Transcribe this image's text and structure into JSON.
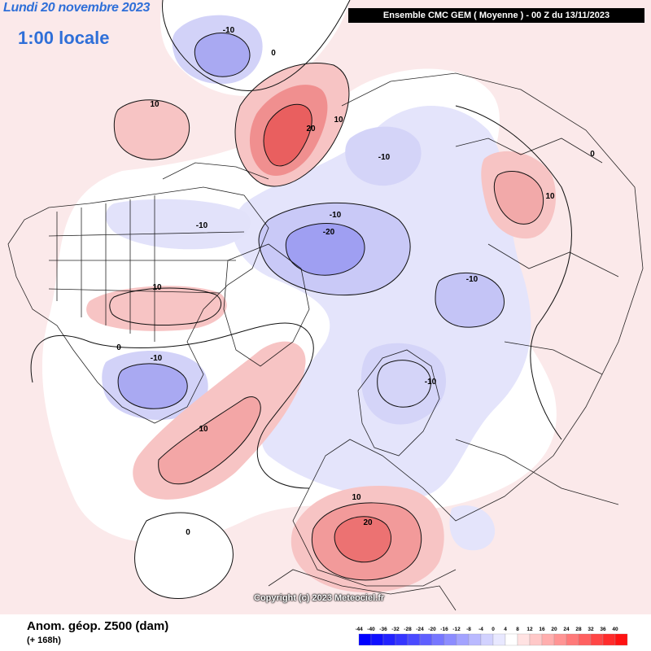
{
  "header": {
    "date_line": "Lundi 20 novembre 2023",
    "time_line": "1:00 locale",
    "model_line": "Ensemble CMC GEM  ( Moyenne )  -  00 Z du 13/11/2023"
  },
  "footer": {
    "variable": "Anom. géop. Z500 (dam)",
    "lead": "(+ 168h)",
    "copyright": "Copyright (c) 2023 Meteociel.fr"
  },
  "scale": {
    "ticks": [
      "-44",
      "-40",
      "-36",
      "-32",
      "-28",
      "-24",
      "-20",
      "-16",
      "-12",
      "-8",
      "-4",
      "0",
      "4",
      "8",
      "12",
      "16",
      "20",
      "24",
      "28",
      "32",
      "36",
      "40"
    ],
    "colors": [
      "#0000ff",
      "#1010ff",
      "#2222ff",
      "#3535ff",
      "#4a4aff",
      "#5f5fff",
      "#7676ff",
      "#8c8cff",
      "#a3a3ff",
      "#b9b9ff",
      "#d2d2ff",
      "#e8e8ff",
      "#ffffff",
      "#ffe2e2",
      "#ffc8c8",
      "#ffaeae",
      "#ff9494",
      "#ff7a7a",
      "#ff6060",
      "#ff4646",
      "#ff2c2c",
      "#ff1212"
    ]
  },
  "contour_labels": [
    {
      "text": "-10",
      "id": "alaska-low"
    },
    {
      "text": "0",
      "id": "bering-zero"
    },
    {
      "text": "10",
      "id": "pacific-high"
    },
    {
      "text": "20",
      "id": "siberia-high-core"
    },
    {
      "text": "10",
      "id": "siberia-high-edge"
    },
    {
      "text": "-10",
      "id": "east-siberia-low"
    },
    {
      "text": "10",
      "id": "east-asia-high"
    },
    {
      "text": "0",
      "id": "east-asia-zero"
    },
    {
      "text": "-10",
      "id": "canada-low"
    },
    {
      "text": "-10",
      "id": "arctic-low-edge"
    },
    {
      "text": "-20",
      "id": "arctic-low-core"
    },
    {
      "text": "10",
      "id": "western-us-high"
    },
    {
      "text": "0",
      "id": "us-zero"
    },
    {
      "text": "-10",
      "id": "mexico-low"
    },
    {
      "text": "-10",
      "id": "kara-low"
    },
    {
      "text": "-10",
      "id": "scandinavia-low"
    },
    {
      "text": "10",
      "id": "atlantic-high"
    },
    {
      "text": "10",
      "id": "europe-high-edge"
    },
    {
      "text": "20",
      "id": "europe-high-core"
    },
    {
      "text": "0",
      "id": "pacific-zero"
    }
  ]
}
